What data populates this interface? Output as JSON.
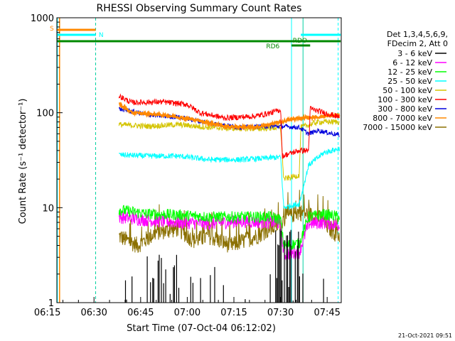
{
  "chart_data": {
    "type": "line",
    "title": "RHESSI Observing Summary Count Rates",
    "xlabel": "Start Time (07-Oct-04 06:12:02)",
    "ylabel": "Count Rate (s⁻¹ detector⁻¹)",
    "y_scale": "log",
    "ylim": [
      1,
      1000
    ],
    "xlim_minutes": [
      6.03,
      97.5
    ],
    "x_ticks": [
      {
        "label": "06:15",
        "t": 2.97
      },
      {
        "label": "06:30",
        "t": 17.97
      },
      {
        "label": "06:45",
        "t": 32.97
      },
      {
        "label": "07:00",
        "t": 47.97
      },
      {
        "label": "07:15",
        "t": 62.97
      },
      {
        "label": "07:30",
        "t": 77.97
      },
      {
        "label": "07:45",
        "t": 92.97
      }
    ],
    "y_ticks": [
      {
        "label": "1",
        "v": 1
      },
      {
        "label": "10",
        "v": 10
      },
      {
        "label": "100",
        "v": 100
      },
      {
        "label": "1000",
        "v": 1000
      }
    ],
    "legend_header": [
      "Det 1,3,4,5,6,9,",
      "FDecim 2, Att 0"
    ],
    "series": [
      {
        "name": "3 - 6 keV",
        "color": "#000000"
      },
      {
        "name": "6 - 12 keV",
        "color": "#ff00ff"
      },
      {
        "name": "12 - 25 keV",
        "color": "#00ff00"
      },
      {
        "name": "25 - 50 keV",
        "color": "#00ffff"
      },
      {
        "name": "50 - 100 keV",
        "color": "#d4c400"
      },
      {
        "name": "100 - 300 keV",
        "color": "#ff0000"
      },
      {
        "name": "300 - 800 keV",
        "color": "#0000dd"
      },
      {
        "name": "800 - 7000 keV",
        "color": "#ff8800"
      },
      {
        "name": "7000 - 15000 keV",
        "color": "#8b7000"
      }
    ],
    "flag_bars": [
      {
        "label": "S",
        "color": "#ff8800"
      },
      {
        "label": "N",
        "color": "#00ffff"
      },
      {
        "label": "RDO",
        "color": "#008800"
      },
      {
        "label": "RD6",
        "color": "#008800"
      }
    ],
    "data_points": {
      "100 - 300 keV": [
        [
          26,
          150
        ],
        [
          30,
          128
        ],
        [
          40,
          130
        ],
        [
          48,
          122
        ],
        [
          52,
          100
        ],
        [
          60,
          88
        ],
        [
          70,
          92
        ],
        [
          75,
          100
        ],
        [
          78,
          108
        ],
        [
          78.5,
          35
        ],
        [
          84,
          40
        ],
        [
          87,
          40
        ],
        [
          87.5,
          110
        ],
        [
          92,
          100
        ],
        [
          97,
          90
        ]
      ],
      "800 - 7000 keV": [
        [
          26,
          125
        ],
        [
          30,
          100
        ],
        [
          40,
          95
        ],
        [
          50,
          85
        ],
        [
          60,
          72
        ],
        [
          70,
          70
        ],
        [
          78,
          80
        ],
        [
          84,
          88
        ],
        [
          90,
          90
        ],
        [
          97,
          95
        ]
      ],
      "300 - 800 keV": [
        [
          26,
          110
        ],
        [
          35,
          95
        ],
        [
          45,
          90
        ],
        [
          55,
          78
        ],
        [
          65,
          70
        ],
        [
          72,
          72
        ],
        [
          78,
          72
        ],
        [
          84,
          70
        ],
        [
          87,
          60
        ],
        [
          90,
          65
        ],
        [
          97,
          58
        ]
      ],
      "50 - 100 keV": [
        [
          26,
          75
        ],
        [
          35,
          72
        ],
        [
          45,
          75
        ],
        [
          55,
          70
        ],
        [
          65,
          68
        ],
        [
          72,
          68
        ],
        [
          78,
          70
        ],
        [
          79,
          20
        ],
        [
          84,
          22
        ],
        [
          84.5,
          70
        ],
        [
          90,
          80
        ],
        [
          97,
          80
        ]
      ],
      "25 - 50 keV": [
        [
          26,
          36
        ],
        [
          35,
          35
        ],
        [
          45,
          35
        ],
        [
          55,
          32
        ],
        [
          65,
          32
        ],
        [
          72,
          33
        ],
        [
          78,
          34
        ],
        [
          79,
          10
        ],
        [
          84,
          11
        ],
        [
          87,
          28
        ],
        [
          92,
          38
        ],
        [
          97,
          42
        ]
      ],
      "12 - 25 keV": [
        [
          26,
          9.5
        ],
        [
          35,
          8.6
        ],
        [
          45,
          8.4
        ],
        [
          55,
          8
        ],
        [
          65,
          8
        ],
        [
          75,
          8
        ],
        [
          78,
          7.5
        ],
        [
          79,
          4
        ],
        [
          84,
          4.2
        ],
        [
          87,
          8
        ],
        [
          92,
          8.5
        ],
        [
          97,
          8
        ]
      ],
      "6 - 12 keV": [
        [
          26,
          8
        ],
        [
          35,
          7.4
        ],
        [
          45,
          7
        ],
        [
          55,
          6.8
        ],
        [
          65,
          7.2
        ],
        [
          75,
          7
        ],
        [
          78,
          6.8
        ],
        [
          79,
          3.2
        ],
        [
          84,
          3.4
        ],
        [
          87,
          6.8
        ],
        [
          92,
          7
        ],
        [
          97,
          6.5
        ]
      ],
      "7000 - 15000 keV": [
        [
          26,
          5
        ],
        [
          32,
          4
        ],
        [
          38,
          5.5
        ],
        [
          45,
          6
        ],
        [
          50,
          4.5
        ],
        [
          55,
          5
        ],
        [
          62,
          4
        ],
        [
          70,
          5
        ],
        [
          77,
          6.5
        ],
        [
          80,
          8
        ],
        [
          84,
          9
        ],
        [
          90,
          8
        ],
        [
          95,
          5.5
        ],
        [
          97,
          5
        ]
      ]
    }
  },
  "footer": {
    "timestamp": "21-Oct-2021 09:51"
  }
}
